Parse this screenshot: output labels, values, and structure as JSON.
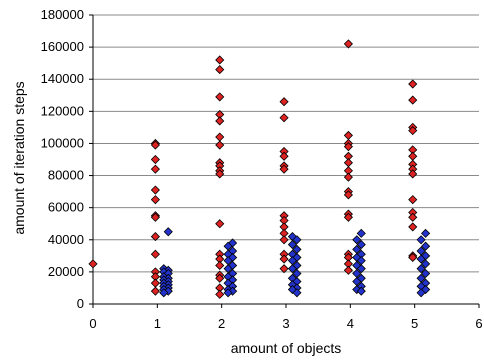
{
  "chart_data": {
    "type": "scatter",
    "xlabel": "amount of objects",
    "ylabel": "amount of iteration steps",
    "xlim": [
      0,
      6
    ],
    "ylim": [
      0,
      180000
    ],
    "xticks": [
      "0",
      "1",
      "2",
      "3",
      "4",
      "5",
      "6"
    ],
    "yticks": [
      "0",
      "20000",
      "40000",
      "60000",
      "80000",
      "100000",
      "120000",
      "140000",
      "160000",
      "180000"
    ],
    "grid": "horizontal",
    "legend": "none",
    "series": [
      {
        "color": "#dd2222",
        "marker": "diamond",
        "points": [
          [
            0.0,
            25000
          ],
          [
            0.97,
            100000
          ],
          [
            0.97,
            99000
          ],
          [
            0.97,
            90000
          ],
          [
            0.97,
            84000
          ],
          [
            0.97,
            71000
          ],
          [
            0.97,
            65000
          ],
          [
            0.97,
            55000
          ],
          [
            0.97,
            54000
          ],
          [
            0.97,
            42000
          ],
          [
            0.97,
            31000
          ],
          [
            0.97,
            20000
          ],
          [
            0.97,
            17000
          ],
          [
            0.97,
            13000
          ],
          [
            0.97,
            8000
          ],
          [
            1.97,
            152000
          ],
          [
            1.97,
            146000
          ],
          [
            1.97,
            129000
          ],
          [
            1.97,
            118000
          ],
          [
            1.97,
            114000
          ],
          [
            1.97,
            104000
          ],
          [
            1.97,
            99000
          ],
          [
            1.97,
            88000
          ],
          [
            1.97,
            86000
          ],
          [
            1.97,
            83000
          ],
          [
            1.97,
            81000
          ],
          [
            1.97,
            50000
          ],
          [
            1.97,
            31000
          ],
          [
            1.97,
            28000
          ],
          [
            1.97,
            24000
          ],
          [
            1.97,
            18000
          ],
          [
            1.97,
            16000
          ],
          [
            1.97,
            10000
          ],
          [
            1.97,
            6000
          ],
          [
            2.97,
            126000
          ],
          [
            2.97,
            116000
          ],
          [
            2.97,
            95000
          ],
          [
            2.97,
            92000
          ],
          [
            2.97,
            86000
          ],
          [
            2.97,
            84000
          ],
          [
            2.97,
            55000
          ],
          [
            2.97,
            52000
          ],
          [
            2.97,
            48000
          ],
          [
            2.97,
            44000
          ],
          [
            2.97,
            40000
          ],
          [
            2.97,
            31000
          ],
          [
            2.97,
            28000
          ],
          [
            2.97,
            22000
          ],
          [
            3.97,
            162000
          ],
          [
            3.97,
            105000
          ],
          [
            3.97,
            100000
          ],
          [
            3.97,
            98000
          ],
          [
            3.97,
            92000
          ],
          [
            3.97,
            88000
          ],
          [
            3.97,
            83000
          ],
          [
            3.97,
            79000
          ],
          [
            3.97,
            70000
          ],
          [
            3.97,
            68000
          ],
          [
            3.97,
            56000
          ],
          [
            3.97,
            54000
          ],
          [
            3.97,
            31000
          ],
          [
            3.97,
            29000
          ],
          [
            3.97,
            25000
          ],
          [
            3.97,
            21000
          ],
          [
            4.97,
            137000
          ],
          [
            4.97,
            127000
          ],
          [
            4.97,
            110000
          ],
          [
            4.97,
            108000
          ],
          [
            4.97,
            96000
          ],
          [
            4.97,
            92000
          ],
          [
            4.97,
            87000
          ],
          [
            4.97,
            84000
          ],
          [
            4.97,
            81000
          ],
          [
            4.97,
            65000
          ],
          [
            4.97,
            57000
          ],
          [
            4.97,
            54000
          ],
          [
            4.97,
            48000
          ],
          [
            4.97,
            30000
          ],
          [
            4.97,
            29000
          ]
        ]
      },
      {
        "color": "#2233cc",
        "marker": "diamond",
        "points": [
          [
            1.17,
            45000
          ],
          [
            1.1,
            22000
          ],
          [
            1.17,
            21000
          ],
          [
            1.1,
            20000
          ],
          [
            1.17,
            19000
          ],
          [
            1.1,
            17000
          ],
          [
            1.17,
            16000
          ],
          [
            1.1,
            15000
          ],
          [
            1.17,
            14000
          ],
          [
            1.1,
            13000
          ],
          [
            1.17,
            12000
          ],
          [
            1.1,
            11000
          ],
          [
            1.17,
            10000
          ],
          [
            1.1,
            9000
          ],
          [
            1.17,
            8000
          ],
          [
            1.1,
            7000
          ],
          [
            2.17,
            38000
          ],
          [
            2.1,
            36000
          ],
          [
            2.17,
            33000
          ],
          [
            2.1,
            31000
          ],
          [
            2.17,
            29000
          ],
          [
            2.1,
            27000
          ],
          [
            2.17,
            24000
          ],
          [
            2.1,
            22000
          ],
          [
            2.17,
            19000
          ],
          [
            2.1,
            17000
          ],
          [
            2.17,
            15000
          ],
          [
            2.1,
            13000
          ],
          [
            2.17,
            11000
          ],
          [
            2.1,
            9000
          ],
          [
            2.17,
            8000
          ],
          [
            2.1,
            7000
          ],
          [
            3.1,
            42000
          ],
          [
            3.17,
            40000
          ],
          [
            3.1,
            37000
          ],
          [
            3.17,
            34000
          ],
          [
            3.1,
            31000
          ],
          [
            3.17,
            29000
          ],
          [
            3.1,
            27000
          ],
          [
            3.17,
            24000
          ],
          [
            3.1,
            22000
          ],
          [
            3.17,
            19000
          ],
          [
            3.1,
            16000
          ],
          [
            3.17,
            14000
          ],
          [
            3.1,
            12000
          ],
          [
            3.17,
            10000
          ],
          [
            3.1,
            9000
          ],
          [
            3.17,
            7000
          ],
          [
            4.17,
            44000
          ],
          [
            4.1,
            40000
          ],
          [
            4.17,
            37000
          ],
          [
            4.1,
            34000
          ],
          [
            4.17,
            31000
          ],
          [
            4.1,
            29000
          ],
          [
            4.17,
            27000
          ],
          [
            4.1,
            24000
          ],
          [
            4.17,
            22000
          ],
          [
            4.1,
            19000
          ],
          [
            4.17,
            16000
          ],
          [
            4.1,
            14000
          ],
          [
            4.17,
            11000
          ],
          [
            4.1,
            9000
          ],
          [
            4.17,
            8000
          ],
          [
            5.17,
            44000
          ],
          [
            5.1,
            40000
          ],
          [
            5.17,
            36000
          ],
          [
            5.1,
            33000
          ],
          [
            5.17,
            30000
          ],
          [
            5.1,
            28000
          ],
          [
            5.17,
            25000
          ],
          [
            5.1,
            22000
          ],
          [
            5.17,
            19000
          ],
          [
            5.1,
            16000
          ],
          [
            5.17,
            13000
          ],
          [
            5.1,
            11000
          ],
          [
            5.17,
            9000
          ],
          [
            5.1,
            7000
          ]
        ]
      }
    ]
  }
}
